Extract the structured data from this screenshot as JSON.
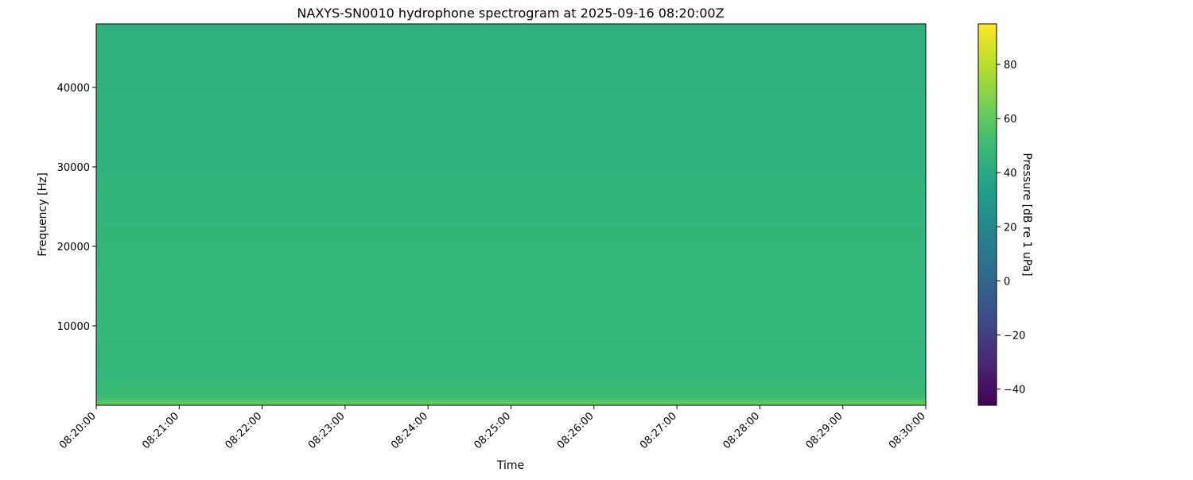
{
  "chart_data": {
    "type": "heatmap",
    "title": "NAXYS-SN0010 hydrophone spectrogram at 2025-09-16 08:20:00Z",
    "xlabel": "Time",
    "ylabel": "Frequency [Hz]",
    "x_ticks": [
      "08:20:00",
      "08:21:00",
      "08:22:00",
      "08:23:00",
      "08:24:00",
      "08:25:00",
      "08:26:00",
      "08:27:00",
      "08:28:00",
      "08:29:00",
      "08:30:00"
    ],
    "y_ticks": [
      10000,
      20000,
      30000,
      40000
    ],
    "ylim": [
      0,
      48000
    ],
    "colormap": "viridis",
    "colorbar": {
      "label": "Pressure [dB re 1 uPa]",
      "range": [
        -46,
        95
      ],
      "ticks": [
        -40,
        -20,
        0,
        20,
        40,
        60,
        80
      ]
    },
    "frequency_profile": {
      "frequency_hz": [
        0,
        500,
        1000,
        5000,
        10000,
        15000,
        20000,
        25000,
        30000,
        35000,
        40000,
        45000,
        48000
      ],
      "level_db": [
        62,
        58,
        50,
        47,
        48,
        48,
        47,
        46,
        45,
        45,
        44,
        44,
        44
      ]
    }
  }
}
